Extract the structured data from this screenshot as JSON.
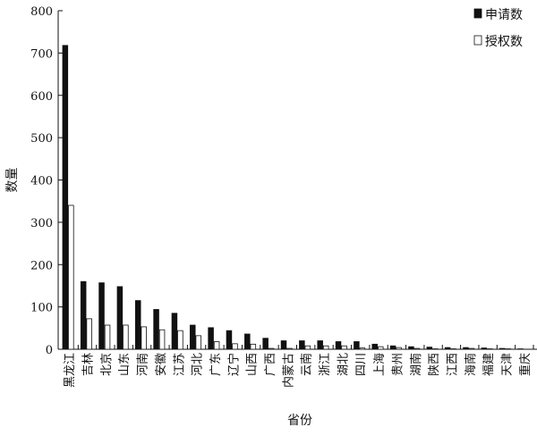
{
  "chart_data": {
    "type": "bar",
    "title": "",
    "xlabel": "省份",
    "ylabel": "数量",
    "ylim": [
      0,
      800
    ],
    "yticks": [
      0,
      100,
      200,
      300,
      400,
      500,
      600,
      700,
      800
    ],
    "grid": false,
    "legend_position": "top-right",
    "categories": [
      "黑龙江",
      "吉林",
      "北京",
      "山东",
      "河南",
      "安徽",
      "江苏",
      "河北",
      "广东",
      "辽宁",
      "山西",
      "广西",
      "内蒙古",
      "云南",
      "浙江",
      "湖北",
      "四川",
      "上海",
      "贵州",
      "湖南",
      "陕西",
      "江西",
      "海南",
      "福建",
      "天津",
      "重庆"
    ],
    "series": [
      {
        "name": "申请数",
        "color": "#111111",
        "values": [
          718,
          160,
          157,
          148,
          115,
          94,
          85,
          57,
          51,
          44,
          36,
          26,
          20,
          20,
          20,
          18,
          18,
          12,
          8,
          6,
          5,
          4,
          4,
          3,
          2,
          1
        ]
      },
      {
        "name": "授权数",
        "color": "#ffffff",
        "values": [
          340,
          72,
          57,
          57,
          53,
          46,
          44,
          32,
          18,
          13,
          12,
          2,
          2,
          8,
          8,
          8,
          3,
          6,
          4,
          2,
          1,
          1,
          2,
          1,
          1,
          0
        ]
      }
    ]
  }
}
